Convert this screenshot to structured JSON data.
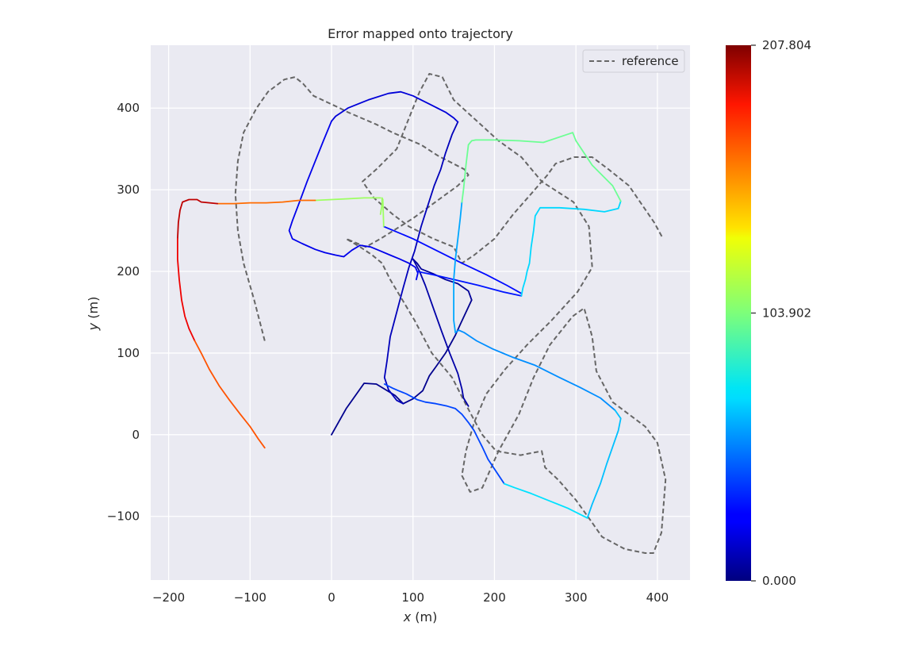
{
  "chart_data": {
    "type": "line",
    "title": "Error mapped onto trajectory",
    "xlabel_var": "x",
    "xlabel_unit": " (m)",
    "ylabel_var": "y",
    "ylabel_unit": " (m)",
    "xlim": [
      -222,
      440
    ],
    "ylim": [
      -178,
      477
    ],
    "xticks": [
      -200,
      -100,
      0,
      100,
      200,
      300,
      400
    ],
    "yticks": [
      -100,
      0,
      100,
      200,
      300,
      400
    ],
    "xtick_labels": [
      "−200",
      "−100",
      "0",
      "100",
      "200",
      "300",
      "400"
    ],
    "ytick_labels": [
      "−100",
      "0",
      "100",
      "200",
      "300",
      "400"
    ],
    "grid": true,
    "legend": {
      "placement": "top-right",
      "entries": [
        "reference"
      ]
    },
    "colorbar": {
      "colormap": "jet",
      "min": 0.0,
      "max": 207.804,
      "tick_values": [
        0.0,
        103.902,
        207.804
      ],
      "tick_labels": [
        "0.000",
        "103.902",
        "207.804"
      ]
    },
    "reference": {
      "name": "reference",
      "color": "#666666",
      "x": [
        -82,
        -95,
        -108,
        -115,
        -118,
        -115,
        -108,
        -92,
        -78,
        -58,
        -45,
        -35,
        -22,
        10,
        20,
        55,
        75,
        110,
        130,
        163,
        168,
        155,
        100,
        60,
        42,
        18,
        35,
        50,
        62,
        72,
        102,
        123,
        148,
        166,
        175,
        185,
        202,
        232,
        258,
        262,
        278,
        300,
        318,
        332,
        360,
        385,
        395,
        405,
        410,
        400,
        385,
        345,
        325,
        320,
        310,
        296,
        268,
        248,
        230,
        205,
        185,
        170,
        160,
        165,
        175,
        190,
        213,
        240,
        270,
        302,
        320,
        316,
        297,
        258,
        233,
        205,
        150,
        136,
        120,
        108,
        96,
        80,
        55,
        38,
        52,
        75,
        95,
        125,
        150,
        155,
        160,
        175,
        200,
        223,
        245,
        265,
        275,
        298,
        320,
        340,
        365,
        396,
        407
      ],
      "y": [
        115,
        165,
        210,
        250,
        295,
        335,
        370,
        400,
        420,
        435,
        438,
        430,
        415,
        400,
        395,
        380,
        370,
        355,
        342,
        325,
        318,
        305,
        265,
        240,
        230,
        240,
        230,
        220,
        210,
        190,
        140,
        100,
        70,
        35,
        18,
        0,
        -20,
        -25,
        -20,
        -40,
        -55,
        -80,
        -105,
        -125,
        -140,
        -145,
        -145,
        -120,
        -55,
        -10,
        10,
        40,
        78,
        120,
        155,
        145,
        110,
        70,
        25,
        -20,
        -65,
        -70,
        -50,
        -20,
        15,
        50,
        80,
        110,
        140,
        175,
        205,
        255,
        285,
        310,
        340,
        360,
        410,
        438,
        442,
        420,
        390,
        350,
        325,
        310,
        290,
        270,
        255,
        240,
        230,
        220,
        210,
        220,
        240,
        270,
        295,
        318,
        332,
        340,
        340,
        325,
        305,
        260,
        240
      ]
    },
    "estimate_segments": [
      {
        "label": "traj-segment-1",
        "error": 3,
        "x": [
          0,
          18,
          40,
          55,
          78,
          88,
          100,
          112,
          120,
          128,
          140,
          152,
          158,
          165,
          172
        ],
        "y": [
          0,
          32,
          63,
          62,
          48,
          38,
          44,
          54,
          72,
          83,
          100,
          122,
          135,
          150,
          165
        ]
      },
      {
        "label": "traj-segment-2",
        "error": 5,
        "x": [
          172,
          168,
          155,
          140,
          125,
          110,
          105,
          100
        ],
        "y": [
          165,
          176,
          185,
          190,
          197,
          203,
          210,
          215
        ]
      },
      {
        "label": "traj-segment-3",
        "error": 8,
        "x": [
          100,
          108,
          115,
          125,
          135,
          145,
          155,
          160,
          162,
          168
        ],
        "y": [
          215,
          200,
          183,
          155,
          127,
          100,
          75,
          56,
          45,
          35
        ]
      },
      {
        "label": "traj-segment-4",
        "error": 12,
        "x": [
          88,
          80,
          70,
          65,
          68,
          72,
          80,
          88,
          95,
          102,
          110,
          118,
          126,
          134,
          140,
          148,
          155
        ],
        "y": [
          38,
          42,
          55,
          70,
          90,
          120,
          150,
          180,
          205,
          225,
          255,
          280,
          305,
          325,
          345,
          368,
          383
        ]
      },
      {
        "label": "traj-segment-5",
        "error": 18,
        "x": [
          155,
          150,
          140,
          120,
          100,
          85,
          70,
          45,
          20,
          5,
          0
        ],
        "y": [
          383,
          388,
          395,
          405,
          415,
          420,
          418,
          410,
          400,
          390,
          384
        ]
      },
      {
        "label": "traj-segment-6",
        "error": 22,
        "x": [
          0,
          -10,
          -20,
          -30,
          -40,
          -48,
          -52,
          -48,
          -36,
          -20,
          -8,
          5,
          15,
          25,
          35,
          48,
          60,
          72,
          84,
          95,
          103,
          106,
          104
        ],
        "y": [
          384,
          360,
          335,
          310,
          283,
          262,
          250,
          240,
          234,
          227,
          223,
          220,
          218,
          226,
          232,
          230,
          225,
          220,
          215,
          210,
          205,
          198,
          190
        ]
      },
      {
        "label": "traj-segment-7",
        "error": 30,
        "x": [
          105,
          125,
          150,
          180,
          210,
          233
        ],
        "y": [
          200,
          196,
          190,
          183,
          175,
          170
        ]
      },
      {
        "label": "traj-segment-8",
        "error": 28,
        "x": [
          64,
          100,
          130,
          160,
          190,
          215,
          233
        ],
        "y": [
          255,
          240,
          225,
          210,
          196,
          183,
          173
        ]
      },
      {
        "label": "traj-segment-9",
        "error": 40,
        "x": [
          65,
          75,
          82,
          92,
          105,
          115,
          128,
          142,
          152,
          160,
          168,
          175,
          180,
          185,
          192,
          202,
          212
        ],
        "y": [
          62,
          57,
          54,
          50,
          43,
          40,
          38,
          35,
          32,
          25,
          15,
          5,
          -5,
          -15,
          -30,
          -45,
          -60
        ]
      },
      {
        "label": "traj-segment-10",
        "error": 55,
        "x": [
          152,
          156,
          163,
          178,
          198,
          222,
          250,
          280,
          305,
          330,
          348
        ],
        "y": [
          125,
          128,
          125,
          115,
          105,
          95,
          85,
          70,
          58,
          45,
          30
        ]
      },
      {
        "label": "traj-segment-11",
        "error": 65,
        "x": [
          348,
          355,
          352,
          345,
          338,
          330,
          320,
          314
        ],
        "y": [
          30,
          20,
          5,
          -15,
          -35,
          -60,
          -85,
          -102
        ]
      },
      {
        "label": "traj-segment-12",
        "error": 72,
        "x": [
          212,
          225,
          245,
          265,
          290,
          314
        ],
        "y": [
          -60,
          -65,
          -72,
          -80,
          -90,
          -102
        ]
      },
      {
        "label": "traj-segment-13",
        "error": 60,
        "x": [
          152,
          150,
          150,
          150,
          152,
          155,
          158,
          160
        ],
        "y": [
          125,
          140,
          165,
          190,
          215,
          240,
          265,
          285
        ]
      },
      {
        "label": "traj-segment-14",
        "error": 70,
        "x": [
          233,
          235,
          238,
          240,
          243,
          245,
          248,
          250,
          256,
          280,
          310,
          335,
          352,
          355
        ],
        "y": [
          170,
          180,
          190,
          200,
          210,
          230,
          250,
          268,
          278,
          278,
          276,
          273,
          277,
          286
        ]
      },
      {
        "label": "traj-segment-15",
        "error": 100,
        "x": [
          160,
          162,
          165,
          168,
          172,
          177,
          200,
          230,
          260,
          290,
          296,
          300,
          320,
          345,
          355
        ],
        "y": [
          285,
          300,
          330,
          355,
          360,
          361,
          361,
          360,
          358,
          368,
          370,
          360,
          330,
          305,
          286
        ]
      },
      {
        "label": "traj-segment-16",
        "error": 110,
        "x": [
          60,
          62,
          62,
          63,
          64
        ],
        "y": [
          270,
          282,
          290,
          288,
          255
        ]
      },
      {
        "label": "traj-segment-17",
        "error": 110,
        "x": [
          60,
          40,
          20,
          0,
          -20
        ],
        "y": [
          290,
          290,
          289,
          288,
          287
        ]
      },
      {
        "label": "traj-segment-18",
        "error": 160,
        "x": [
          -20,
          -40,
          -60,
          -80,
          -100,
          -120,
          -140
        ],
        "y": [
          287,
          287,
          285,
          284,
          284,
          283,
          283
        ]
      },
      {
        "label": "traj-segment-19",
        "error": 195,
        "x": [
          -140,
          -160,
          -165,
          -175,
          -183,
          -186,
          -188,
          -189
        ],
        "y": [
          283,
          285,
          288,
          288,
          285,
          275,
          260,
          240
        ]
      },
      {
        "label": "traj-segment-20",
        "error": 185,
        "x": [
          -189,
          -189,
          -187,
          -184,
          -180,
          -175,
          -168
        ],
        "y": [
          240,
          215,
          190,
          165,
          145,
          130,
          115
        ]
      },
      {
        "label": "traj-segment-21",
        "error": 165,
        "x": [
          -168,
          -160,
          -150,
          -138,
          -125,
          -112,
          -100,
          -90,
          -82
        ],
        "y": [
          115,
          100,
          80,
          60,
          42,
          25,
          10,
          -5,
          -16
        ]
      }
    ]
  }
}
